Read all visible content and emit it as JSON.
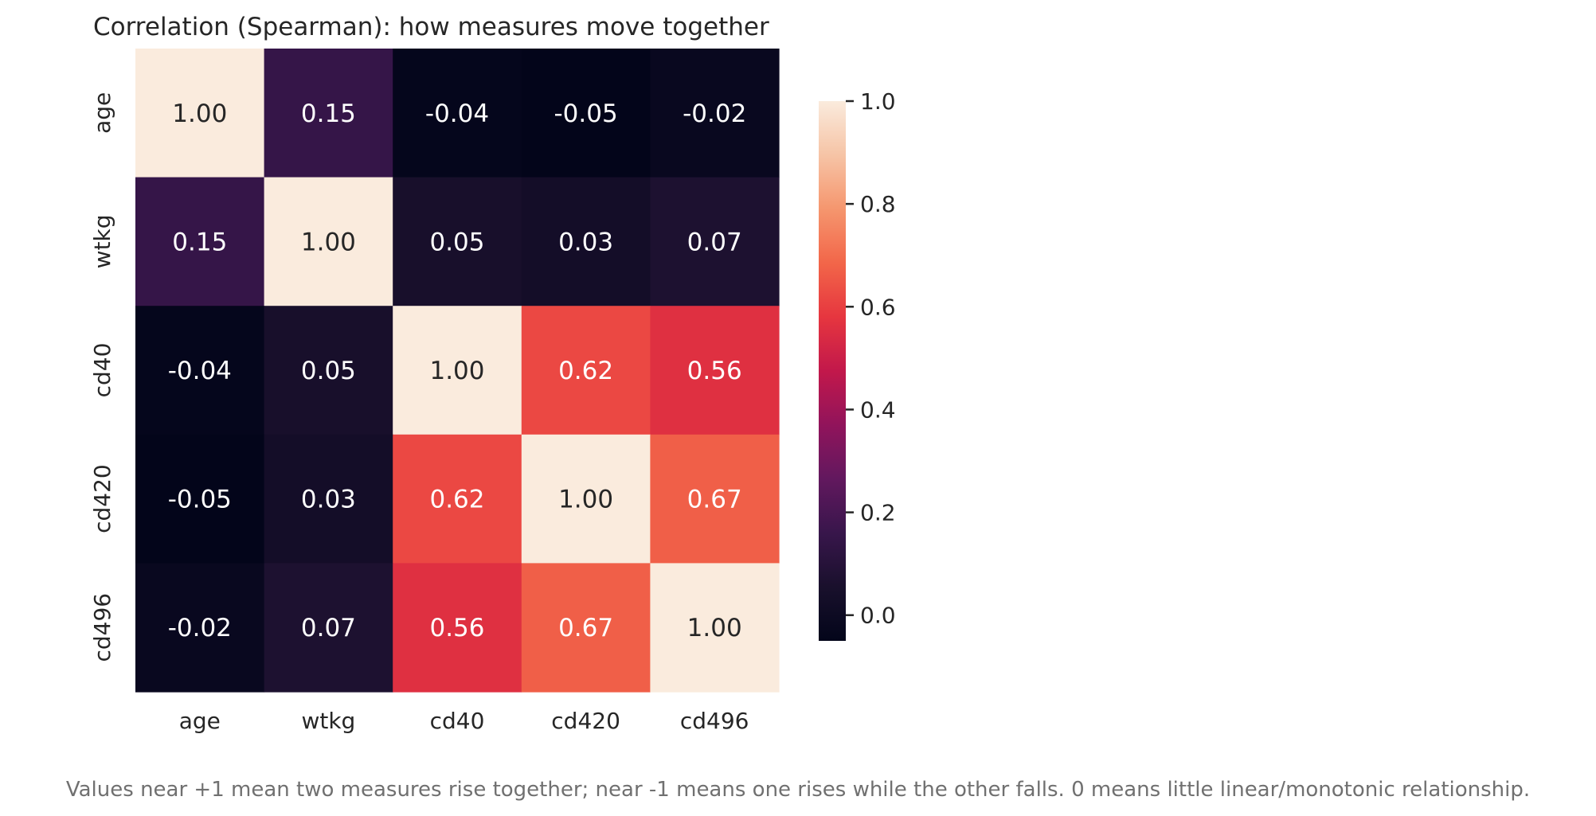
{
  "chart_data": {
    "type": "heatmap",
    "title": "Correlation (Spearman): how measures move together",
    "row_labels": [
      "age",
      "wtkg",
      "cd40",
      "cd420",
      "cd496"
    ],
    "col_labels": [
      "age",
      "wtkg",
      "cd40",
      "cd420",
      "cd496"
    ],
    "values": [
      [
        1.0,
        0.15,
        -0.04,
        -0.05,
        -0.02
      ],
      [
        0.15,
        1.0,
        0.05,
        0.03,
        0.07
      ],
      [
        -0.04,
        0.05,
        1.0,
        0.62,
        0.56
      ],
      [
        -0.05,
        0.03,
        0.62,
        1.0,
        0.67
      ],
      [
        -0.02,
        0.07,
        0.56,
        0.67,
        1.0
      ]
    ],
    "value_labels": [
      [
        "1.00",
        "0.15",
        "-0.04",
        "-0.05",
        "-0.02"
      ],
      [
        "0.15",
        "1.00",
        "0.05",
        "0.03",
        "0.07"
      ],
      [
        "-0.04",
        "0.05",
        "1.00",
        "0.62",
        "0.56"
      ],
      [
        "-0.05",
        "0.03",
        "0.62",
        "1.00",
        "0.67"
      ],
      [
        "-0.02",
        "0.07",
        "0.56",
        "0.67",
        "1.00"
      ]
    ],
    "colormap": "rocket",
    "color_range": [
      -0.05,
      1.0
    ],
    "colorbar": {
      "ticks": [
        0.0,
        0.2,
        0.4,
        0.6,
        0.8,
        1.0
      ],
      "tick_labels": [
        "0.0",
        "0.2",
        "0.4",
        "0.6",
        "0.8",
        "1.0"
      ],
      "placement": "right"
    },
    "grid": false,
    "legend": "none"
  },
  "caption": "Values near +1 mean two measures rise together; near -1 means one rises while the other falls. 0 means little linear/monotonic relationship."
}
